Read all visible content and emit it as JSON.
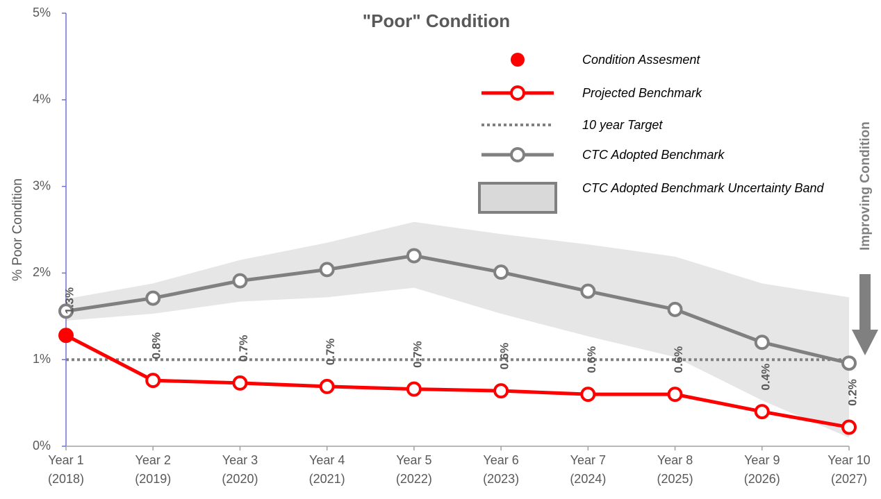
{
  "chart_data": {
    "type": "line",
    "title": "\"Poor\" Condition",
    "y_label": "% Poor Condition",
    "annotation": "Improving Condition",
    "categories": [
      [
        "Year 1",
        "(2018)"
      ],
      [
        "Year 2",
        "(2019)"
      ],
      [
        "Year 3",
        "(2020)"
      ],
      [
        "Year 4",
        "(2021)"
      ],
      [
        "Year 5",
        "(2022)"
      ],
      [
        "Year 6",
        "(2023)"
      ],
      [
        "Year 7",
        "(2024)"
      ],
      [
        "Year 8",
        "(2025)"
      ],
      [
        "Year 9",
        "(2026)"
      ],
      [
        "Year 10",
        "(2027)"
      ]
    ],
    "ylim": [
      0,
      5
    ],
    "yticks": [
      {
        "value": 0,
        "label": "0%"
      },
      {
        "value": 1,
        "label": "1%"
      },
      {
        "value": 2,
        "label": "2%"
      },
      {
        "value": 3,
        "label": "3%"
      },
      {
        "value": 4,
        "label": "4%"
      },
      {
        "value": 5,
        "label": "5%"
      }
    ],
    "target": {
      "name": "10 year Target",
      "value": 1,
      "color": "#808080"
    },
    "band": {
      "name": "CTC Adopted Benchmark Uncertainty Band",
      "color": "#e6e6e6",
      "high": [
        1.7,
        1.88,
        2.15,
        2.35,
        2.59,
        2.45,
        2.33,
        2.19,
        1.88,
        1.72
      ],
      "low": [
        1.45,
        1.53,
        1.67,
        1.72,
        1.83,
        1.53,
        1.27,
        1.03,
        0.53,
        0.1
      ]
    },
    "series": [
      {
        "name": "Condition Assesment",
        "color": "#ff0000",
        "style": "dot",
        "values": [
          1.28,
          null,
          null,
          null,
          null,
          null,
          null,
          null,
          null,
          null
        ]
      },
      {
        "name": "Projected Benchmark",
        "color": "#ff0000",
        "style": "line",
        "values": [
          1.28,
          0.76,
          0.73,
          0.69,
          0.66,
          0.64,
          0.6,
          0.6,
          0.4,
          0.22
        ],
        "value_labels": [
          "1.3%",
          "0.8%",
          "0.7%",
          "0.7%",
          "0.7%",
          "0.6%",
          "0.6%",
          "0.6%",
          "0.4%",
          "0.2%"
        ]
      },
      {
        "name": "CTC Adopted Benchmark",
        "color": "#808080",
        "style": "line",
        "values": [
          1.56,
          1.71,
          1.91,
          2.04,
          2.2,
          2.01,
          1.79,
          1.58,
          1.2,
          0.96
        ]
      }
    ]
  }
}
